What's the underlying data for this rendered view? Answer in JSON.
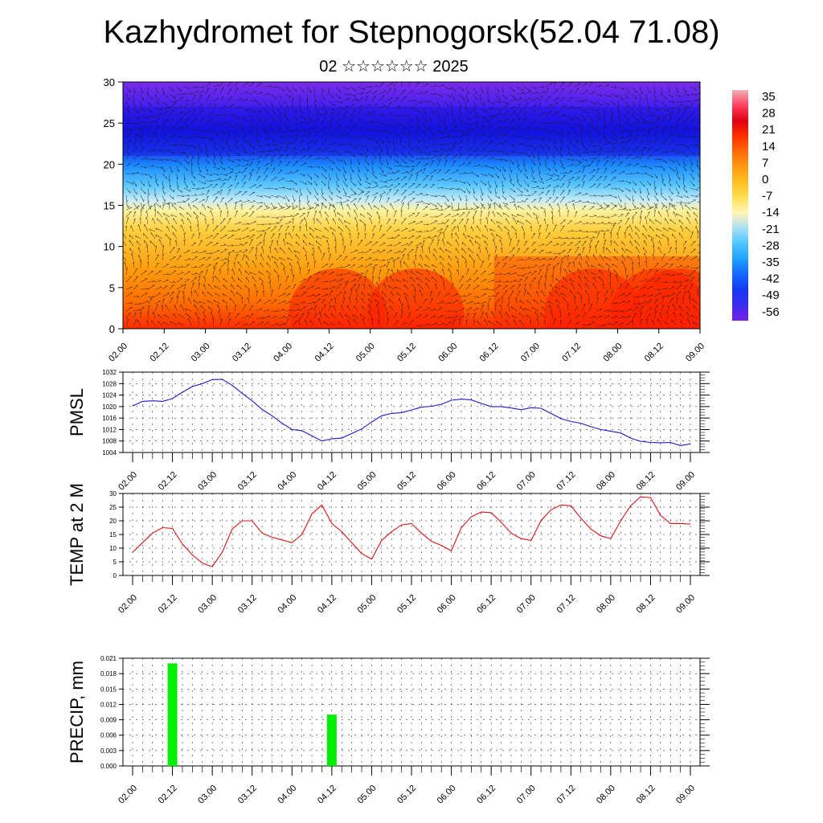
{
  "header": {
    "title": "Kazhydromet for Stepnogorsk(52.04 71.08)",
    "subtitle": "02 ☆☆☆☆☆☆ 2025"
  },
  "chart_data": [
    {
      "type": "heatmap",
      "title": "",
      "x_ticks": [
        "02.00",
        "02.12",
        "03.00",
        "03.12",
        "04.00",
        "04.12",
        "05.00",
        "05.12",
        "06.00",
        "06.12",
        "07.00",
        "07.12",
        "08.00",
        "08.12",
        "09.00"
      ],
      "y_ticks": [
        0,
        5,
        10,
        15,
        20,
        25,
        30
      ],
      "ylim": [
        0,
        30
      ],
      "colorbar_labels": [
        "35",
        "28",
        "21",
        "14",
        "7",
        "0",
        "-7",
        "-14",
        "-21",
        "-28",
        "-35",
        "-42",
        "-49",
        "-56"
      ],
      "colorbar_range": [
        -60,
        38
      ],
      "colormap": [
        "#7a1fe8",
        "#3a2cf0",
        "#1438f2",
        "#1466ff",
        "#1ea0ff",
        "#4cc4ff",
        "#a8dff5",
        "#fff7b8",
        "#ffe055",
        "#ffc020",
        "#ff9a10",
        "#ff6a08",
        "#ff3000",
        "#e00010",
        "#ff4060",
        "#f0b0b8"
      ],
      "overlay": "wind vectors"
    },
    {
      "type": "line",
      "ylabel": "PMSL",
      "x_ticks": [
        "02.00",
        "02.12",
        "03.00",
        "03.12",
        "04.00",
        "04.12",
        "05.00",
        "05.12",
        "06.00",
        "06.12",
        "07.00",
        "07.12",
        "08.00",
        "08.12",
        "09.00"
      ],
      "y_ticks": [
        1004,
        1008,
        1012,
        1016,
        1020,
        1024,
        1028,
        1032
      ],
      "ylim": [
        1004,
        1032
      ],
      "series": [
        {
          "color": "#1a1acc",
          "values": [
            1020.2,
            1021.8,
            1022.0,
            1021.8,
            1022.8,
            1025.0,
            1027.0,
            1028.0,
            1029.4,
            1029.5,
            1027.4,
            1024.6,
            1022.0,
            1019.0,
            1016.8,
            1014.2,
            1012.0,
            1011.6,
            1009.8,
            1008.0,
            1008.8,
            1009.0,
            1010.6,
            1012.2,
            1014.6,
            1016.8,
            1017.6,
            1017.9,
            1018.8,
            1019.8,
            1020.1,
            1020.8,
            1022.2,
            1022.6,
            1022.3,
            1021.1,
            1020.0,
            1020.0,
            1019.5,
            1018.9,
            1019.6,
            1019.4,
            1017.6,
            1015.8,
            1014.8,
            1014.2,
            1013.0,
            1012.0,
            1011.4,
            1010.8,
            1009.0,
            1007.9,
            1007.5,
            1007.4,
            1007.5,
            1006.4,
            1007.0
          ]
        }
      ]
    },
    {
      "type": "line",
      "ylabel": "TEMP at 2 M",
      "x_ticks": [
        "02.00",
        "02.12",
        "03.00",
        "03.12",
        "04.00",
        "04.12",
        "05.00",
        "05.12",
        "06.00",
        "06.12",
        "07.00",
        "07.12",
        "08.00",
        "08.12",
        "09.00"
      ],
      "y_ticks": [
        0,
        5,
        10,
        15,
        20,
        25,
        30
      ],
      "ylim": [
        0,
        30
      ],
      "series": [
        {
          "color": "#dd1111",
          "values": [
            8.5,
            12.0,
            15.5,
            17.5,
            17.2,
            11.5,
            7.5,
            4.5,
            3.2,
            8.5,
            17.0,
            20.0,
            20.0,
            15.5,
            14.0,
            13.0,
            12.0,
            15.0,
            22.5,
            25.8,
            19.0,
            16.0,
            12.0,
            8.0,
            6.0,
            12.8,
            16.0,
            18.5,
            19.0,
            15.5,
            12.5,
            11.0,
            9.0,
            17.5,
            21.5,
            23.2,
            23.0,
            19.5,
            15.5,
            13.5,
            12.8,
            20.0,
            24.0,
            25.8,
            25.5,
            21.0,
            17.0,
            14.5,
            13.5,
            20.0,
            25.5,
            28.8,
            28.5,
            22.0,
            19.0,
            19.0,
            18.8
          ]
        }
      ]
    },
    {
      "type": "bar",
      "ylabel": "PRECIP, mm",
      "x_ticks": [
        "02.00",
        "02.12",
        "03.00",
        "03.12",
        "04.00",
        "04.12",
        "05.00",
        "05.12",
        "06.00",
        "06.12",
        "07.00",
        "07.12",
        "08.00",
        "08.12",
        "09.00"
      ],
      "y_ticks": [
        "0.000",
        "0.003",
        "0.006",
        "0.009",
        "0.012",
        "0.015",
        "0.018",
        "0.021"
      ],
      "ylim": [
        0,
        0.021
      ],
      "bars": [
        {
          "x_hours": 12,
          "value": 0.02
        },
        {
          "x_hours": 60,
          "value": 0.01
        }
      ],
      "bar_color": "#00ee00"
    }
  ]
}
